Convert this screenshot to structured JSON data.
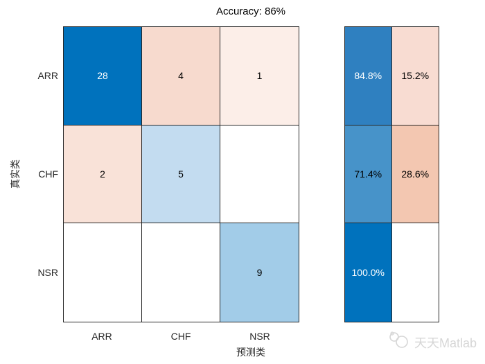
{
  "title": "Accuracy: 86%",
  "axes": {
    "xlabel": "预测类",
    "ylabel": "真实类"
  },
  "chart_data": {
    "type": "heatmap",
    "subtype": "confusion-matrix",
    "title": "Accuracy: 86%",
    "xlabel": "预测类",
    "ylabel": "真实类",
    "x_categories": [
      "ARR",
      "CHF",
      "NSR"
    ],
    "y_categories": [
      "ARR",
      "CHF",
      "NSR"
    ],
    "matrix": [
      [
        28,
        4,
        1
      ],
      [
        2,
        5,
        0
      ],
      [
        0,
        0,
        9
      ]
    ],
    "row_normalized": [
      [
        "84.8%",
        "15.2%"
      ],
      [
        "71.4%",
        "28.6%"
      ],
      [
        "100.0%",
        ""
      ]
    ],
    "cell_colors": [
      [
        "#0072BD",
        "#F7DACE",
        "#FCEEE8"
      ],
      [
        "#F9E2D8",
        "#C3DCF0",
        "#FFFFFF"
      ],
      [
        "#FFFFFF",
        "#FFFFFF",
        "#A2CCE8"
      ]
    ],
    "cell_text_colors": [
      [
        "#FFFFFF",
        "#000000",
        "#000000"
      ],
      [
        "#000000",
        "#000000",
        "#000000"
      ],
      [
        "#000000",
        "#000000",
        "#000000"
      ]
    ],
    "summary_colors": [
      [
        "#2F80C0",
        "#F8DCD2"
      ],
      [
        "#4793C9",
        "#F3C7B1"
      ],
      [
        "#0072BD",
        "#FFFFFF"
      ]
    ],
    "summary_text_colors": [
      [
        "#FFFFFF",
        "#000000"
      ],
      [
        "#000000",
        "#000000"
      ],
      [
        "#FFFFFF",
        "#000000"
      ]
    ],
    "colors": {
      "accent_blue": "#0072BD",
      "grid_line": "#262626"
    },
    "legend_position": "none",
    "grid": "cell-borders"
  },
  "watermark": {
    "text": "天天Matlab"
  }
}
